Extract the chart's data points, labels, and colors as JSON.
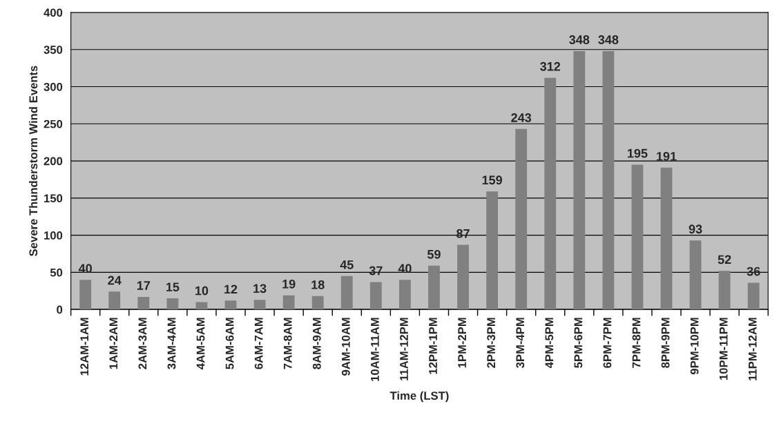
{
  "chart_data": {
    "type": "bar",
    "xlabel": "Time (LST)",
    "ylabel": "Severe Thunderstorm Wind Events",
    "categories": [
      "12AM-1AM",
      "1AM-2AM",
      "2AM-3AM",
      "3AM-4AM",
      "4AM-5AM",
      "5AM-6AM",
      "6AM-7AM",
      "7AM-8AM",
      "8AM-9AM",
      "9AM-10AM",
      "10AM-11AM",
      "11AM-12PM",
      "12PM-1PM",
      "1PM-2PM",
      "2PM-3PM",
      "3PM-4PM",
      "4PM-5PM",
      "5PM-6PM",
      "6PM-7PM",
      "7PM-8PM",
      "8PM-9PM",
      "9PM-10PM",
      "10PM-11PM",
      "11PM-12AM"
    ],
    "values": [
      40,
      24,
      17,
      15,
      10,
      12,
      13,
      19,
      18,
      45,
      37,
      40,
      59,
      87,
      159,
      243,
      312,
      348,
      348,
      195,
      191,
      93,
      52,
      36
    ],
    "color": "#808080",
    "ylim": [
      0,
      400
    ],
    "yticks": [
      0,
      50,
      100,
      150,
      200,
      250,
      300,
      350,
      400
    ],
    "grid": "y",
    "data_labels": true,
    "legend": false
  }
}
